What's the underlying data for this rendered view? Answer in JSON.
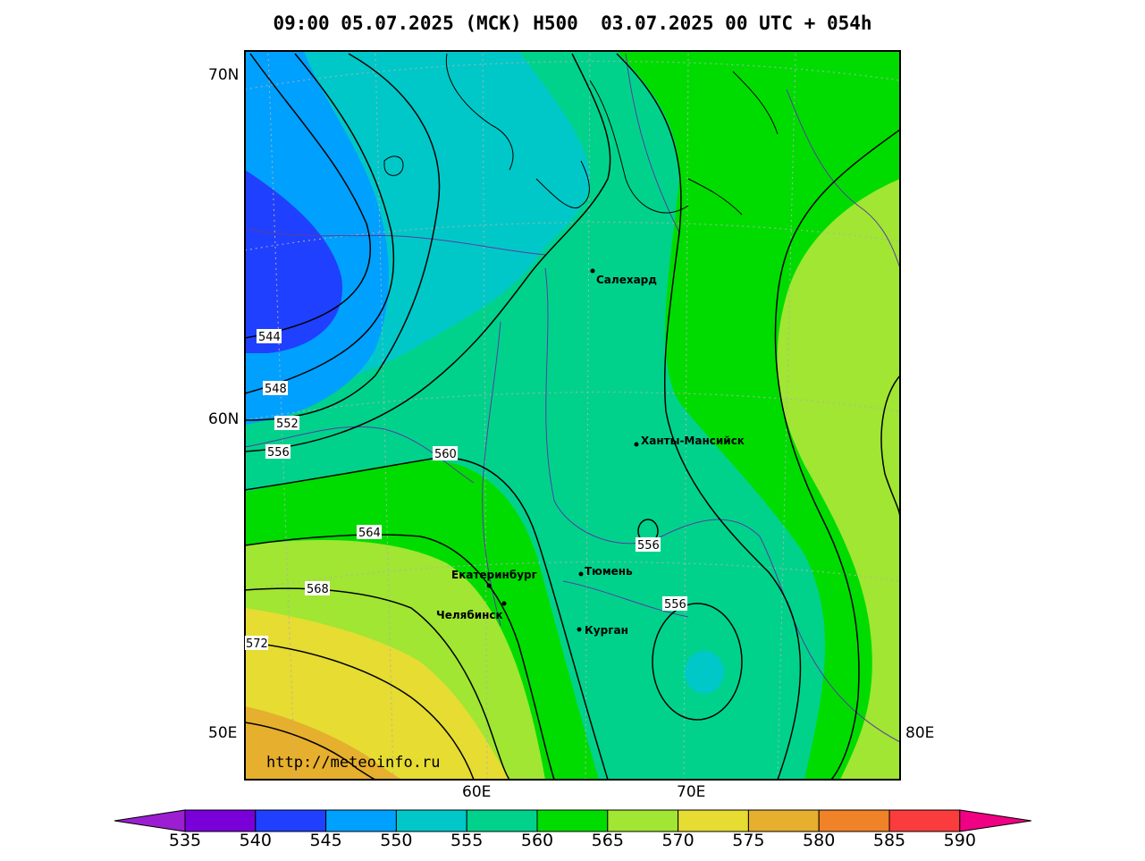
{
  "title": "09:00 05.07.2025 (МСК) H500  03.07.2025 00 UTC + 054h",
  "watermark": "http://meteoinfo.ru",
  "axes": {
    "lat_labels": [
      "70N",
      "60N",
      "50E"
    ],
    "lon_labels_bottom": [
      "60E",
      "70E"
    ],
    "lon_label_right": "80E"
  },
  "cities": [
    {
      "name": "Салехард"
    },
    {
      "name": "Ханты-Мансийск"
    },
    {
      "name": "Тюмень"
    },
    {
      "name": "Екатеринбург"
    },
    {
      "name": "Челябинск"
    },
    {
      "name": "Курган"
    }
  ],
  "contour_labels": [
    "544",
    "548",
    "552",
    "556",
    "560",
    "564",
    "568",
    "572",
    "556",
    "556"
  ],
  "colorbar": {
    "values": [
      "535",
      "540",
      "545",
      "550",
      "555",
      "560",
      "565",
      "570",
      "575",
      "580",
      "585",
      "590"
    ],
    "colors": [
      "#9b1fd1",
      "#7a00d9",
      "#2040ff",
      "#00a0ff",
      "#00c8c8",
      "#00d28c",
      "#00dc00",
      "#a0e632",
      "#e6dc32",
      "#e6af2d",
      "#f08228",
      "#fa3c3c",
      "#f00082"
    ]
  },
  "field_colors": {
    "c545": "#2040ff",
    "c550": "#00a0ff",
    "c555": "#00c8c8",
    "c560": "#00d28c",
    "c565": "#00dc00",
    "c570": "#a0e632",
    "c575": "#e6dc32",
    "c580": "#e6af2d"
  }
}
